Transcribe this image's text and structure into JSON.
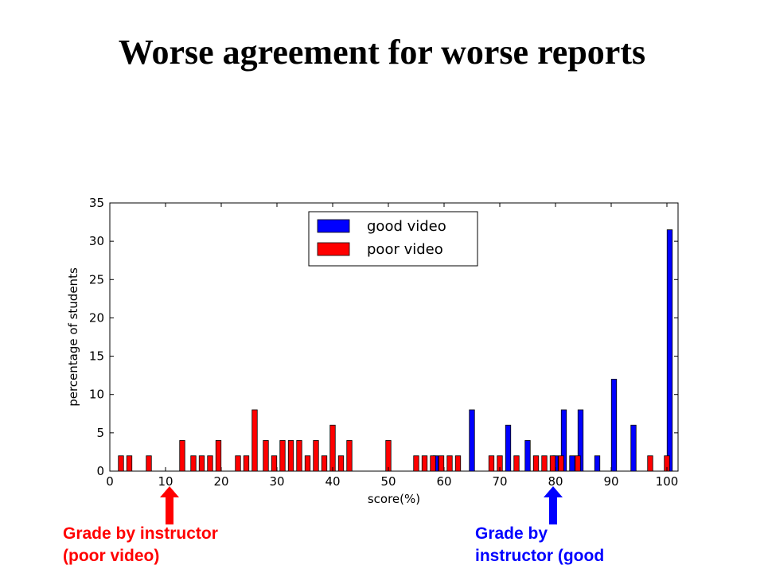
{
  "slide": {
    "title": "Worse agreement for worse reports"
  },
  "annotations": {
    "poor": {
      "lines": [
        "Grade by instructor",
        "(poor video)"
      ],
      "color": "#ff0000",
      "arrow_score": 11
    },
    "good": {
      "lines": [
        "Grade by",
        "instructor (good"
      ],
      "color": "#0000ff",
      "arrow_score": 80
    }
  },
  "chart_data": {
    "type": "bar",
    "xlabel": "score(%)",
    "ylabel": "percentage of students",
    "xlim": [
      0,
      102
    ],
    "ylim": [
      0,
      35
    ],
    "xticks": [
      0,
      10,
      20,
      30,
      40,
      50,
      60,
      70,
      80,
      90,
      100
    ],
    "yticks": [
      0,
      5,
      10,
      15,
      20,
      25,
      30,
      35
    ],
    "grid": false,
    "legend_position": "top-center",
    "series": [
      {
        "name": "good video",
        "color": "#0000ff",
        "points": [
          {
            "x": 58.5,
            "y": 2
          },
          {
            "x": 65,
            "y": 8
          },
          {
            "x": 71.5,
            "y": 6
          },
          {
            "x": 75,
            "y": 4
          },
          {
            "x": 80,
            "y": 2
          },
          {
            "x": 81.5,
            "y": 8
          },
          {
            "x": 83,
            "y": 2
          },
          {
            "x": 84.5,
            "y": 8
          },
          {
            "x": 87.5,
            "y": 2
          },
          {
            "x": 90.5,
            "y": 12
          },
          {
            "x": 94,
            "y": 6
          },
          {
            "x": 100.5,
            "y": 31.5
          }
        ]
      },
      {
        "name": "poor video",
        "color": "#ff0000",
        "points": [
          {
            "x": 2,
            "y": 2
          },
          {
            "x": 3.5,
            "y": 2
          },
          {
            "x": 7,
            "y": 2
          },
          {
            "x": 13,
            "y": 4
          },
          {
            "x": 15,
            "y": 2
          },
          {
            "x": 16.5,
            "y": 2
          },
          {
            "x": 18,
            "y": 2
          },
          {
            "x": 19.5,
            "y": 4
          },
          {
            "x": 23,
            "y": 2
          },
          {
            "x": 24.5,
            "y": 2
          },
          {
            "x": 26,
            "y": 8
          },
          {
            "x": 28,
            "y": 4
          },
          {
            "x": 29.5,
            "y": 2
          },
          {
            "x": 31,
            "y": 4
          },
          {
            "x": 32.5,
            "y": 4
          },
          {
            "x": 34,
            "y": 4
          },
          {
            "x": 35.5,
            "y": 2
          },
          {
            "x": 37,
            "y": 4
          },
          {
            "x": 38.5,
            "y": 2
          },
          {
            "x": 40,
            "y": 6
          },
          {
            "x": 41.5,
            "y": 2
          },
          {
            "x": 43,
            "y": 4
          },
          {
            "x": 50,
            "y": 4
          },
          {
            "x": 55,
            "y": 2
          },
          {
            "x": 56.5,
            "y": 2
          },
          {
            "x": 58,
            "y": 2
          },
          {
            "x": 59.5,
            "y": 2
          },
          {
            "x": 61,
            "y": 2
          },
          {
            "x": 62.5,
            "y": 2
          },
          {
            "x": 68.5,
            "y": 2
          },
          {
            "x": 70,
            "y": 2
          },
          {
            "x": 73,
            "y": 2
          },
          {
            "x": 76.5,
            "y": 2
          },
          {
            "x": 78,
            "y": 2
          },
          {
            "x": 79.5,
            "y": 2
          },
          {
            "x": 81,
            "y": 2
          },
          {
            "x": 84,
            "y": 2
          },
          {
            "x": 97,
            "y": 2
          },
          {
            "x": 100,
            "y": 2
          }
        ]
      }
    ]
  }
}
